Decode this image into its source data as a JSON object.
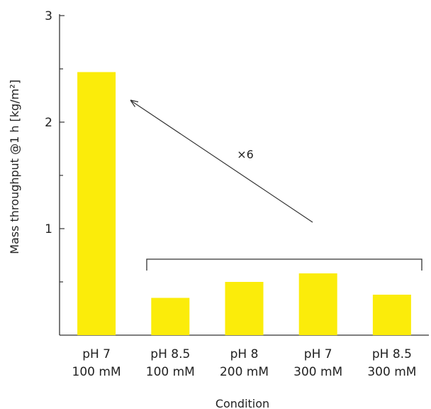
{
  "chart_data": {
    "type": "bar",
    "categories": [
      [
        "pH 7",
        "100 mM"
      ],
      [
        "pH 8.5",
        "100 mM"
      ],
      [
        "pH 8",
        "200 mM"
      ],
      [
        "pH 7",
        "300 mM"
      ],
      [
        "pH 8.5",
        "300 mM"
      ]
    ],
    "values": [
      2.47,
      0.35,
      0.5,
      0.58,
      0.38
    ],
    "xlabel": "Condition",
    "ylabel": "Mass throughput @1 h [kg/m²]",
    "ylim": [
      0,
      3
    ],
    "yticks": [
      1,
      2,
      3
    ],
    "grid": false,
    "bar_color": "#fbec0a",
    "annotation": {
      "label": "×6"
    }
  }
}
